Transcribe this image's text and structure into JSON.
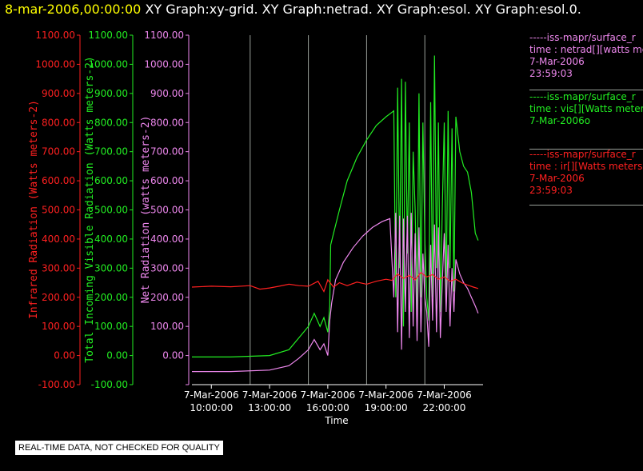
{
  "header": {
    "date": "8-mar-2006,00:00:00",
    "titles": "XY Graph:xy-grid.  XY Graph:netrad.  XY Graph:esol.  XY Graph:esol.0."
  },
  "colors": {
    "red": "#ff2020",
    "green": "#22ee22",
    "violet": "#ee88ee",
    "grid": "#9aa09a",
    "axis": "#ffffff"
  },
  "legend": [
    {
      "line1": "-----iss-mapr/surface_r",
      "line2": "time : netrad[][watts me",
      "line3": "7-Mar-2006",
      "line4": "23:59:03",
      "color": "#ee88ee"
    },
    {
      "line1": "-----iss-mapr/surface_r",
      "line2": "time : vis[][Watts meter",
      "line3": "7-Mar-2006o",
      "line4": "",
      "color": "#22ee22"
    },
    {
      "line1": "-----iss-mapr/surface_r",
      "line2": "time : ir[][Watts meters",
      "line3": "7-Mar-2006",
      "line4": "23:59:03",
      "color": "#ff2020"
    }
  ],
  "qc_note": "REAL-TIME DATA, NOT CHECKED FOR QUALITY",
  "chart_data": {
    "type": "line",
    "xlabel": "Time",
    "x_range_hours": [
      9,
      24
    ],
    "x_ticks": [
      {
        "hour": 10,
        "date": "7-Mar-2006",
        "time": "10:00:00"
      },
      {
        "hour": 13,
        "date": "7-Mar-2006",
        "time": "13:00:00"
      },
      {
        "hour": 16,
        "date": "7-Mar-2006",
        "time": "16:00:00"
      },
      {
        "hour": 19,
        "date": "7-Mar-2006",
        "time": "19:00:00"
      },
      {
        "hour": 22,
        "date": "7-Mar-2006",
        "time": "22:00:00"
      }
    ],
    "grid_hours": [
      12,
      15,
      18,
      21
    ],
    "ylim": [
      -100,
      1100
    ],
    "y_ticks": [
      -100,
      0,
      100,
      200,
      300,
      400,
      500,
      600,
      700,
      800,
      900,
      1000,
      1100
    ],
    "y_axes": [
      {
        "label": "Infrared Radiation (Watts meters-2)",
        "color": "#ff2020",
        "show_neg": true
      },
      {
        "label": "Total Incoming Visible Radiation (Watts meters-2)",
        "color": "#22ee22",
        "show_neg": true
      },
      {
        "label": "Net Radiation (watts meters-2)",
        "color": "#ee88ee",
        "show_neg": false
      }
    ],
    "series": [
      {
        "name": "vis",
        "color": "#22ee22",
        "x": [
          9.0,
          11.0,
          13.0,
          14.0,
          14.5,
          15.0,
          15.3,
          15.6,
          15.8,
          16.0,
          16.1,
          16.15,
          16.3,
          16.6,
          17.0,
          17.5,
          18.0,
          18.5,
          19.0,
          19.4,
          19.5,
          19.6,
          19.7,
          19.8,
          19.9,
          20.0,
          20.1,
          20.2,
          20.3,
          20.4,
          20.5,
          20.6,
          20.7,
          20.8,
          20.9,
          21.0,
          21.1,
          21.2,
          21.3,
          21.4,
          21.5,
          21.6,
          21.7,
          21.8,
          21.9,
          22.0,
          22.1,
          22.2,
          22.3,
          22.4,
          22.5,
          22.6,
          22.8,
          23.0,
          23.2,
          23.4,
          23.6,
          23.75
        ],
        "y": [
          -5,
          -5,
          0,
          20,
          60,
          100,
          145,
          100,
          130,
          80,
          170,
          380,
          420,
          500,
          600,
          680,
          740,
          790,
          820,
          840,
          200,
          920,
          300,
          950,
          100,
          940,
          350,
          800,
          150,
          700,
          500,
          150,
          900,
          200,
          800,
          400,
          200,
          120,
          870,
          200,
          1030,
          300,
          800,
          150,
          500,
          800,
          200,
          840,
          300,
          780,
          220,
          820,
          700,
          650,
          630,
          560,
          420,
          395
        ]
      },
      {
        "name": "netrad",
        "color": "#ee88ee",
        "x": [
          9.0,
          11.0,
          13.0,
          14.0,
          14.5,
          15.0,
          15.3,
          15.6,
          15.8,
          16.0,
          16.1,
          16.2,
          16.4,
          16.8,
          17.3,
          17.8,
          18.3,
          18.8,
          19.2,
          19.4,
          19.5,
          19.6,
          19.7,
          19.8,
          19.9,
          20.0,
          20.1,
          20.2,
          20.3,
          20.4,
          20.5,
          20.6,
          20.7,
          20.8,
          20.9,
          21.0,
          21.1,
          21.2,
          21.3,
          21.4,
          21.5,
          21.6,
          21.7,
          21.8,
          21.9,
          22.0,
          22.1,
          22.2,
          22.3,
          22.4,
          22.5,
          22.6,
          22.8,
          23.0,
          23.2,
          23.4,
          23.6,
          23.75
        ],
        "y": [
          -55,
          -55,
          -50,
          -35,
          -10,
          20,
          55,
          20,
          40,
          0,
          120,
          180,
          260,
          320,
          370,
          410,
          440,
          460,
          470,
          200,
          490,
          80,
          480,
          20,
          470,
          150,
          480,
          60,
          490,
          100,
          420,
          50,
          440,
          80,
          350,
          200,
          150,
          30,
          380,
          120,
          450,
          80,
          440,
          60,
          250,
          420,
          150,
          380,
          100,
          300,
          150,
          330,
          280,
          250,
          230,
          200,
          170,
          145
        ]
      },
      {
        "name": "ir",
        "color": "#ff2020",
        "x": [
          9.0,
          10.0,
          11.0,
          12.0,
          12.5,
          13.0,
          13.5,
          14.0,
          14.5,
          15.0,
          15.5,
          15.8,
          16.0,
          16.3,
          16.6,
          17.0,
          17.5,
          18.0,
          18.5,
          19.0,
          19.3,
          19.6,
          19.9,
          20.2,
          20.5,
          20.8,
          21.1,
          21.4,
          21.7,
          22.0,
          22.3,
          22.6,
          22.9,
          23.2,
          23.5,
          23.75
        ],
        "y": [
          235,
          238,
          236,
          240,
          228,
          232,
          238,
          245,
          240,
          238,
          255,
          220,
          260,
          235,
          250,
          240,
          252,
          245,
          255,
          262,
          258,
          280,
          265,
          275,
          260,
          285,
          270,
          278,
          262,
          270,
          255,
          262,
          250,
          242,
          235,
          230
        ]
      }
    ]
  }
}
